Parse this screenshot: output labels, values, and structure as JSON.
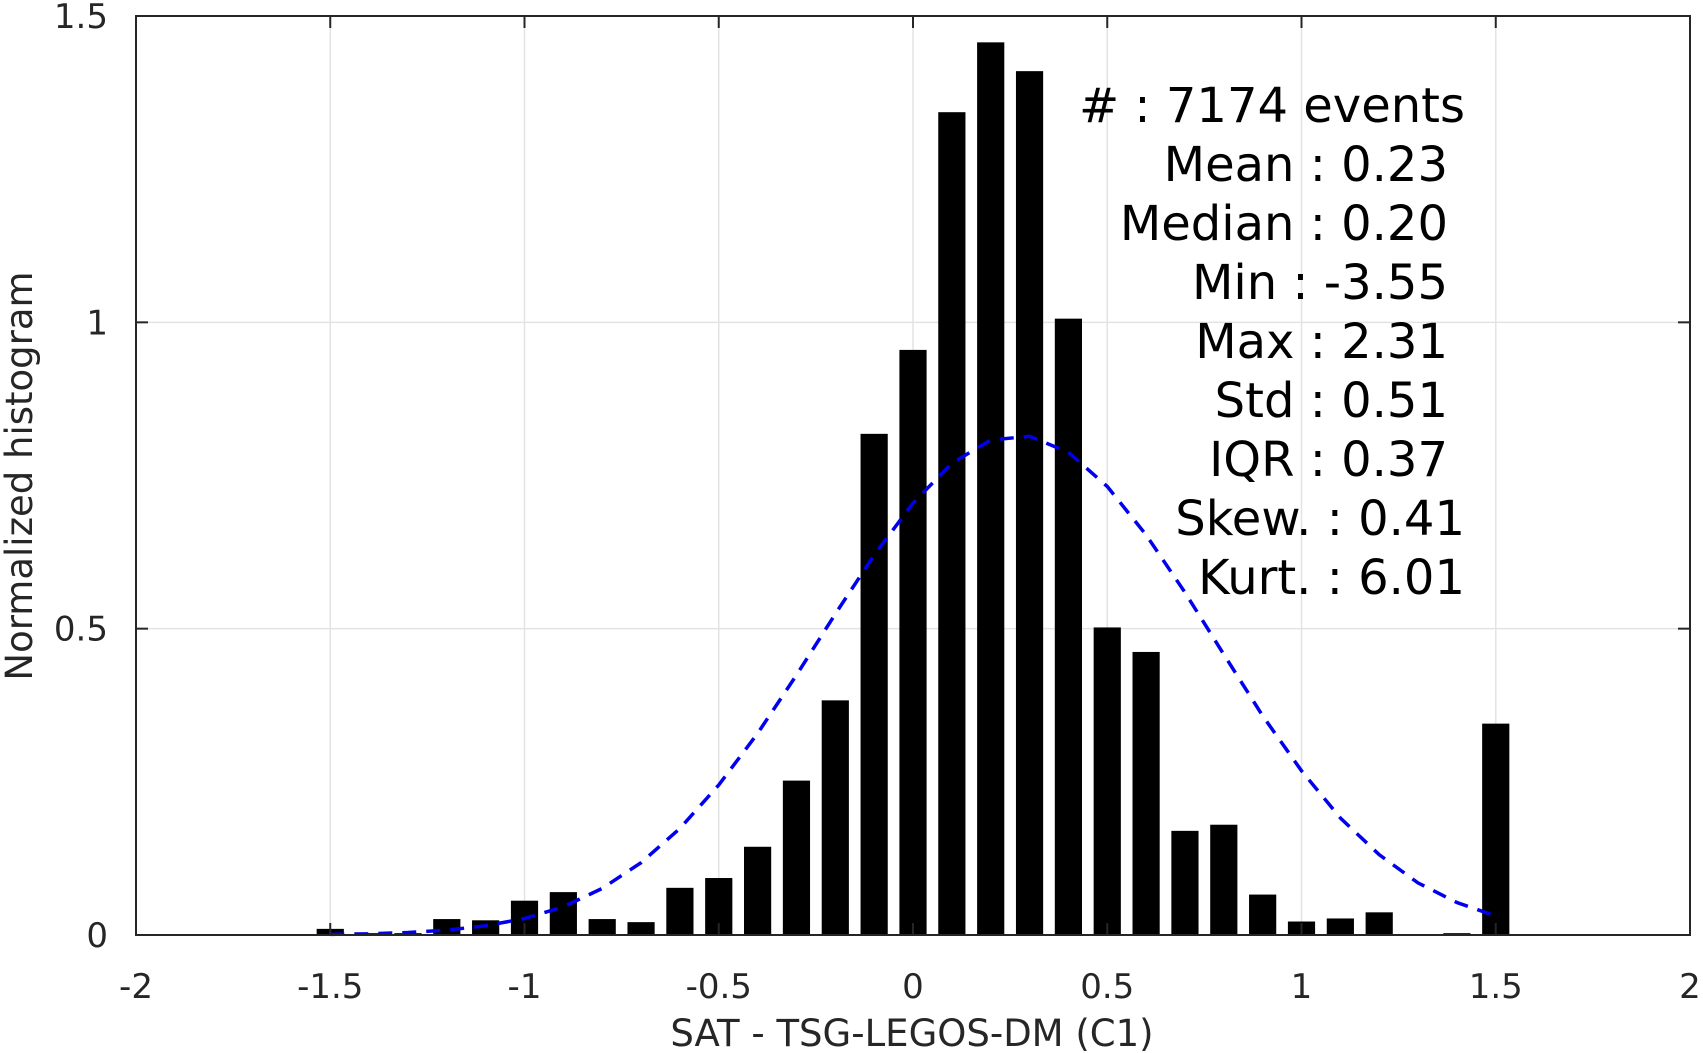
{
  "chart_data": {
    "type": "bar",
    "xlabel": "SAT - TSG-LEGOS-DM (C1)",
    "ylabel": "Normalized histogram",
    "xlim": [
      -2,
      2
    ],
    "ylim": [
      0,
      1.5
    ],
    "xticks": [
      -2,
      -1.5,
      -1,
      -0.5,
      0,
      0.5,
      1,
      1.5,
      2
    ],
    "xtick_labels": [
      "-2",
      "-1.5",
      "-1",
      "-0.5",
      "0",
      "0.5",
      "1",
      "1.5",
      "2"
    ],
    "yticks": [
      0,
      0.5,
      1,
      1.5
    ],
    "ytick_labels": [
      "0",
      "0.5",
      "1",
      "1.5"
    ],
    "grid": true,
    "bar_width": 0.07,
    "series": [
      {
        "kind": "bar",
        "color": "#000000",
        "x": [
          -1.5,
          -1.4,
          -1.3,
          -1.2,
          -1.1,
          -1.0,
          -0.9,
          -0.8,
          -0.7,
          -0.6,
          -0.5,
          -0.4,
          -0.3,
          -0.2,
          -0.1,
          0.0,
          0.1,
          0.2,
          0.3,
          0.4,
          0.5,
          0.6,
          0.7,
          0.8,
          0.9,
          1.0,
          1.1,
          1.2,
          1.3,
          1.4,
          1.5
        ],
        "values": [
          0.01,
          0.003,
          0.003,
          0.026,
          0.024,
          0.056,
          0.07,
          0.026,
          0.021,
          0.077,
          0.093,
          0.144,
          0.252,
          0.383,
          0.818,
          0.955,
          1.343,
          1.457,
          1.41,
          1.006,
          0.502,
          0.462,
          0.17,
          0.18,
          0.066,
          0.022,
          0.027,
          0.037,
          0.0,
          0.003,
          0.345
        ]
      },
      {
        "kind": "line",
        "style": "dashed",
        "color": "#0000ee",
        "x": [
          -1.5,
          -1.4,
          -1.3,
          -1.2,
          -1.1,
          -1.0,
          -0.9,
          -0.8,
          -0.7,
          -0.6,
          -0.5,
          -0.4,
          -0.3,
          -0.2,
          -0.1,
          0.0,
          0.1,
          0.2,
          0.3,
          0.4,
          0.5,
          0.6,
          0.7,
          0.8,
          0.9,
          1.0,
          1.1,
          1.2,
          1.3,
          1.4,
          1.5
        ],
        "values": [
          0.001,
          0.002,
          0.004,
          0.008,
          0.015,
          0.027,
          0.046,
          0.076,
          0.118,
          0.174,
          0.245,
          0.329,
          0.424,
          0.524,
          0.62,
          0.705,
          0.77,
          0.808,
          0.814,
          0.788,
          0.732,
          0.653,
          0.559,
          0.458,
          0.358,
          0.268,
          0.191,
          0.131,
          0.085,
          0.053,
          0.031
        ]
      }
    ],
    "stats": [
      {
        "label": "#",
        "sep": ":",
        "value": "7174 events"
      },
      {
        "label": "Mean",
        "sep": ":",
        "value": "0.23"
      },
      {
        "label": "Median",
        "sep": ":",
        "value": "0.20"
      },
      {
        "label": "Min",
        "sep": ":",
        "value": "-3.55"
      },
      {
        "label": "Max",
        "sep": ":",
        "value": "2.31"
      },
      {
        "label": "Std",
        "sep": ":",
        "value": "0.51"
      },
      {
        "label": "IQR",
        "sep": ":",
        "value": "0.37"
      },
      {
        "label": "Skew.",
        "sep": ":",
        "value": "0.41"
      },
      {
        "label": "Kurt.",
        "sep": ":",
        "value": "6.01"
      }
    ]
  }
}
